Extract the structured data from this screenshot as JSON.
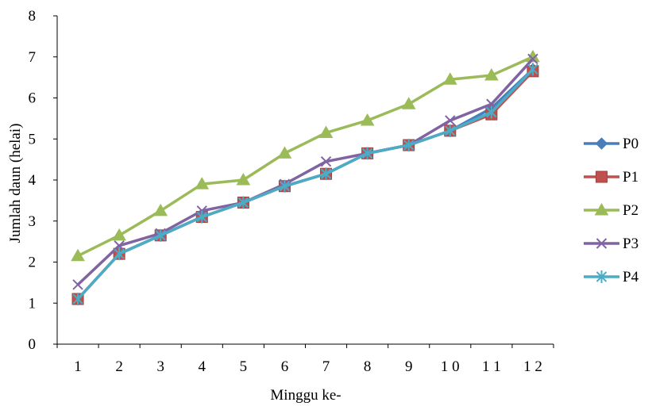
{
  "chart_data": {
    "type": "line",
    "title": "",
    "xlabel": "Minggu ke-",
    "ylabel": "Jumlah daun (helai)",
    "categories": [
      "1",
      "2",
      "3",
      "4",
      "5",
      "6",
      "7",
      "8",
      "9",
      "1 0",
      "1 1",
      "1 2"
    ],
    "ylim": [
      0,
      8
    ],
    "yticks": [
      "0",
      "1",
      "2",
      "3",
      "4",
      "5",
      "6",
      "7",
      "8"
    ],
    "grid": false,
    "legend_position": "right",
    "series": [
      {
        "name": "P0",
        "color": "#4a7ebb",
        "marker": "diamond",
        "values": [
          1.1,
          2.2,
          2.65,
          3.1,
          3.45,
          3.85,
          4.15,
          4.65,
          4.85,
          5.2,
          5.75,
          6.7
        ]
      },
      {
        "name": "P1",
        "color": "#c0504d",
        "marker": "square",
        "values": [
          1.1,
          2.2,
          2.65,
          3.1,
          3.45,
          3.85,
          4.15,
          4.65,
          4.85,
          5.2,
          5.6,
          6.65
        ]
      },
      {
        "name": "P2",
        "color": "#9bbb59",
        "marker": "triangle",
        "values": [
          2.15,
          2.65,
          3.25,
          3.9,
          4.0,
          4.65,
          5.15,
          5.45,
          5.85,
          6.45,
          6.55,
          7.0
        ]
      },
      {
        "name": "P3",
        "color": "#8064a2",
        "marker": "x",
        "values": [
          1.45,
          2.4,
          2.7,
          3.25,
          3.45,
          3.9,
          4.45,
          4.65,
          4.85,
          5.45,
          5.85,
          6.95
        ]
      },
      {
        "name": "P4",
        "color": "#4bacc6",
        "marker": "star",
        "values": [
          1.1,
          2.2,
          2.65,
          3.1,
          3.45,
          3.85,
          4.15,
          4.65,
          4.85,
          5.2,
          5.65,
          6.7
        ]
      }
    ]
  }
}
